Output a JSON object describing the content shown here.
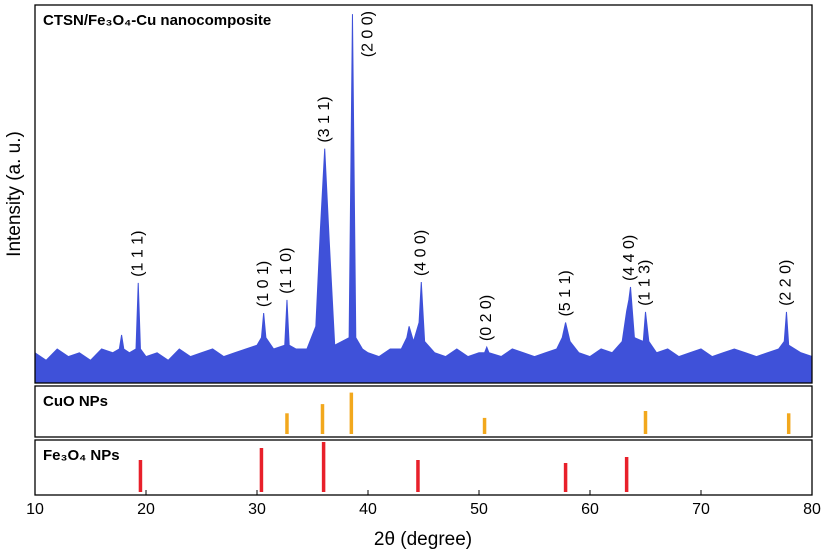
{
  "chart_data": [
    {
      "type": "area",
      "title": "CTSN/Fe₃O₄-Cu nanocomposite",
      "ylabel": "Intensity (a. u.)",
      "color": "#3f51d9",
      "xlim": [
        10,
        80
      ],
      "ylim": [
        0,
        100
      ],
      "x": [
        10,
        11,
        12,
        13,
        14,
        15,
        16,
        17,
        17.6,
        17.8,
        18,
        18.5,
        19.1,
        19.3,
        19.5,
        20,
        21,
        22,
        23,
        24,
        25,
        26,
        27,
        28,
        29,
        30,
        30.4,
        30.6,
        30.8,
        31.5,
        32.5,
        32.7,
        32.9,
        33.5,
        34.5,
        35.3,
        35.7,
        36.1,
        36.5,
        37,
        38.3,
        38.6,
        38.9,
        39.5,
        40,
        41,
        42,
        43,
        43.5,
        43.7,
        44.1,
        44.6,
        44.8,
        45.1,
        46,
        47,
        48,
        49,
        50,
        50.5,
        50.7,
        50.9,
        52,
        53,
        54,
        55,
        56,
        57,
        57.5,
        57.8,
        58.2,
        59,
        60,
        61,
        62,
        62.9,
        63.3,
        63.5,
        63.65,
        64,
        64.8,
        65,
        65.3,
        66,
        67,
        68,
        69,
        70,
        71,
        72,
        73,
        74,
        75,
        76,
        77,
        77.5,
        77.7,
        77.9,
        79,
        80
      ],
      "values": [
        8,
        6,
        9,
        7,
        8,
        6,
        9,
        8,
        9,
        12.7,
        9,
        8,
        9,
        26.5,
        9,
        7,
        8,
        6,
        9,
        7,
        8,
        9,
        7,
        8,
        9,
        10,
        12,
        18.5,
        12,
        9,
        10,
        22,
        10,
        9,
        9,
        15,
        40,
        62,
        38,
        10,
        12,
        97.6,
        12,
        9,
        8,
        7,
        9,
        9,
        12,
        15,
        11,
        16,
        26.7,
        11,
        8,
        7,
        9,
        7,
        8,
        8,
        9.5,
        8,
        7,
        9,
        8,
        7,
        8,
        9,
        12,
        16,
        11,
        8,
        7,
        9,
        8,
        11,
        19,
        22,
        25.4,
        12,
        11,
        18.8,
        11,
        8,
        9,
        7,
        8,
        9,
        7,
        8,
        9,
        8,
        7,
        8,
        9,
        11,
        18.8,
        10,
        8,
        7
      ],
      "annotations": [
        {
          "text": "(1 1 1)",
          "x": 19.3
        },
        {
          "text": "(1 0 1)",
          "x": 30.6
        },
        {
          "text": "(1 1 0)",
          "x": 32.7
        },
        {
          "text": "(3 1 1)",
          "x": 36.1
        },
        {
          "text": "(2 0 0)",
          "x": 38.6
        },
        {
          "text": "(4 0 0)",
          "x": 44.8
        },
        {
          "text": "(0 2 0)",
          "x": 50.7
        },
        {
          "text": "(5 1 1)",
          "x": 57.8
        },
        {
          "text": "(4 4 0)",
          "x": 63.6
        },
        {
          "text": "(1 1 3)",
          "x": 65.0
        },
        {
          "text": "(2 2 0)",
          "x": 77.7
        }
      ]
    },
    {
      "type": "stem",
      "title": "CuO NPs",
      "color": "#f2a81d",
      "xlim": [
        10,
        80
      ],
      "ylim": [
        0,
        100
      ],
      "x": [
        32.7,
        35.9,
        38.5,
        50.5,
        65.0,
        77.9
      ],
      "values": [
        45,
        65,
        90,
        35,
        50,
        45
      ]
    },
    {
      "type": "stem",
      "title": "Fe₃O₄ NPs",
      "color": "#e8202a",
      "xlim": [
        10,
        80
      ],
      "ylim": [
        0,
        100
      ],
      "x": [
        19.5,
        30.4,
        36.0,
        44.5,
        57.8,
        63.3
      ],
      "values": [
        64,
        88,
        100,
        64,
        58,
        70
      ],
      "xlabel": "2θ (degree)",
      "xticks": [
        10,
        20,
        30,
        40,
        50,
        60,
        70,
        80
      ]
    }
  ]
}
